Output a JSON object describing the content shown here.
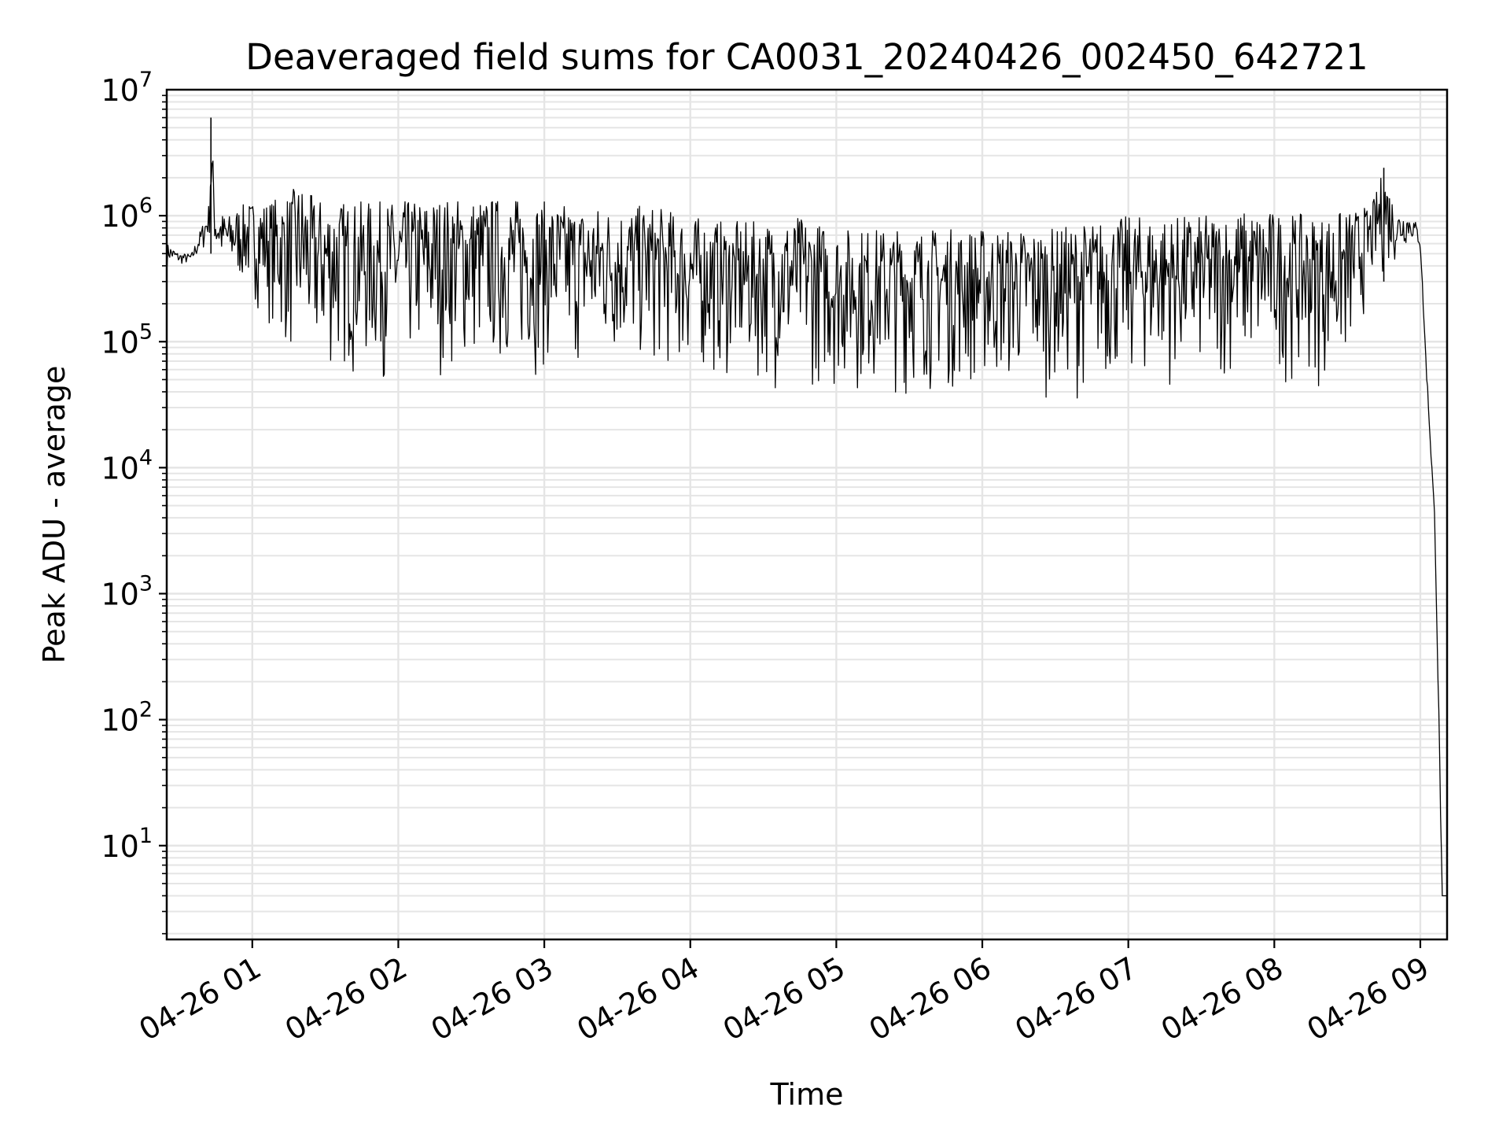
{
  "chart_data": {
    "type": "line",
    "title": "Deaveraged field sums for CA0031_20240426_002450_642721",
    "xlabel": "Time",
    "ylabel": "Peak ADU - average",
    "x_ticks": [
      "04-26 01",
      "04-26 02",
      "04-26 03",
      "04-26 04",
      "04-26 05",
      "04-26 06",
      "04-26 07",
      "04-26 08",
      "04-26 09"
    ],
    "y_ticks": [
      {
        "base": "10",
        "exp": "1"
      },
      {
        "base": "10",
        "exp": "2"
      },
      {
        "base": "10",
        "exp": "3"
      },
      {
        "base": "10",
        "exp": "4"
      },
      {
        "base": "10",
        "exp": "5"
      },
      {
        "base": "10",
        "exp": "6"
      },
      {
        "base": "10",
        "exp": "7"
      }
    ],
    "y_scale": "log",
    "ylim": [
      1.8,
      10000000
    ],
    "xlim": [
      "2024-04-26 00:24:50",
      "2024-04-26 09:11:00"
    ],
    "grid": true,
    "line_color": "#000000",
    "series": [
      {
        "x": [
          "2024-04-26 00:25",
          "2024-04-26 00:30",
          "2024-04-26 00:35",
          "2024-04-26 00:40",
          "2024-04-26 00:42",
          "2024-04-26 00:43",
          "2024-04-26 00:45",
          "2024-04-26 00:50",
          "2024-04-26 00:55",
          "2024-04-26 01:00",
          "2024-04-26 01:05",
          "2024-04-26 01:10",
          "2024-04-26 01:15",
          "2024-04-26 01:20",
          "2024-04-26 01:25",
          "2024-04-26 01:30",
          "2024-04-26 01:40",
          "2024-04-26 01:50",
          "2024-04-26 02:00",
          "2024-04-26 02:15",
          "2024-04-26 02:30",
          "2024-04-26 02:45",
          "2024-04-26 03:00",
          "2024-04-26 03:15",
          "2024-04-26 03:30",
          "2024-04-26 03:45",
          "2024-04-26 04:00",
          "2024-04-26 04:15",
          "2024-04-26 04:30",
          "2024-04-26 04:45",
          "2024-04-26 05:00",
          "2024-04-26 05:15",
          "2024-04-26 05:30",
          "2024-04-26 05:45",
          "2024-04-26 06:00",
          "2024-04-26 06:15",
          "2024-04-26 06:30",
          "2024-04-26 06:45",
          "2024-04-26 07:00",
          "2024-04-26 07:15",
          "2024-04-26 07:30",
          "2024-04-26 07:45",
          "2024-04-26 08:00",
          "2024-04-26 08:15",
          "2024-04-26 08:30",
          "2024-04-26 08:40",
          "2024-04-26 08:45",
          "2024-04-26 08:50",
          "2024-04-26 08:55",
          "2024-04-26 08:58",
          "2024-04-26 09:00",
          "2024-04-26 09:02",
          "2024-04-26 09:04",
          "2024-04-26 09:06",
          "2024-04-26 09:07",
          "2024-04-26 09:08",
          "2024-04-26 09:09",
          "2024-04-26 09:10",
          "2024-04-26 09:11"
        ],
        "upper": [
          600000,
          500000,
          500000,
          900000,
          1100000,
          6000000,
          1100000,
          1000000,
          1200000,
          1300000,
          1300000,
          1400000,
          1500000,
          1900000,
          1400000,
          1400000,
          1300000,
          1300000,
          1300000,
          1400000,
          1400000,
          1400000,
          1300000,
          1200000,
          1200000,
          1200000,
          1000000,
          900000,
          900000,
          1000000,
          800000,
          800000,
          800000,
          800000,
          800000,
          800000,
          800000,
          900000,
          1000000,
          1000000,
          1000000,
          1100000,
          1100000,
          1000000,
          1100000,
          1200000,
          2400000,
          1100000,
          1000000,
          900000,
          700000,
          100000,
          20000,
          4000,
          500,
          50,
          4,
          4,
          4
        ],
        "lower": [
          400000,
          400000,
          400000,
          500000,
          600000,
          500000,
          400000,
          300000,
          250000,
          200000,
          150000,
          100000,
          60000,
          55000,
          45000,
          45000,
          45000,
          45000,
          45000,
          50000,
          50000,
          50000,
          50000,
          50000,
          55000,
          50000,
          45000,
          45000,
          40000,
          40000,
          35000,
          35000,
          35000,
          35000,
          35000,
          35000,
          35000,
          35000,
          40000,
          40000,
          40000,
          45000,
          45000,
          40000,
          45000,
          250000,
          300000,
          400000,
          600000,
          600000,
          500000,
          80000,
          15000,
          3000,
          300,
          30,
          4,
          4,
          4
        ]
      }
    ]
  }
}
